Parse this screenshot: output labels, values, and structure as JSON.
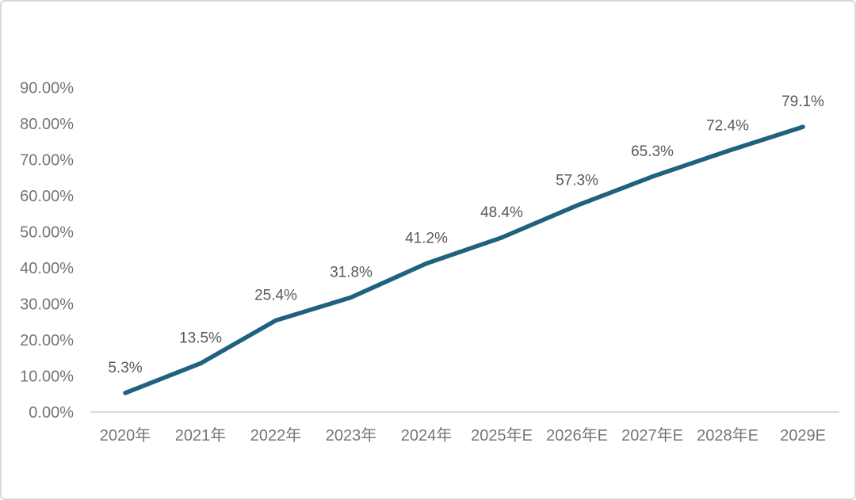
{
  "frame": {
    "background": "#ffffff",
    "border_color": "#d8d8d8"
  },
  "chart_data": {
    "type": "line",
    "title": "",
    "categories": [
      "2020年",
      "2021年",
      "2022年",
      "2023年",
      "2024年",
      "2025年E",
      "2026年E",
      "2027年E",
      "2028年E",
      "2029E"
    ],
    "values": [
      5.3,
      13.5,
      25.4,
      31.8,
      41.2,
      48.4,
      57.3,
      65.3,
      72.4,
      79.1
    ],
    "data_labels": [
      "5.3%",
      "13.5%",
      "25.4%",
      "31.8%",
      "41.2%",
      "48.4%",
      "57.3%",
      "65.3%",
      "72.4%",
      "79.1%"
    ],
    "y_ticks": [
      "0.00%",
      "10.00%",
      "20.00%",
      "30.00%",
      "40.00%",
      "50.00%",
      "60.00%",
      "70.00%",
      "80.00%",
      "90.00%"
    ],
    "ylim": [
      0,
      90
    ],
    "y_step": 10,
    "grid": false,
    "legend": "none",
    "xlabel": "",
    "ylabel": "",
    "line_color": "#206180",
    "line_width": 5.5,
    "axis_label_color": "#757575",
    "data_label_color": "#595959",
    "axis_line_color": "#d9d9d9"
  }
}
